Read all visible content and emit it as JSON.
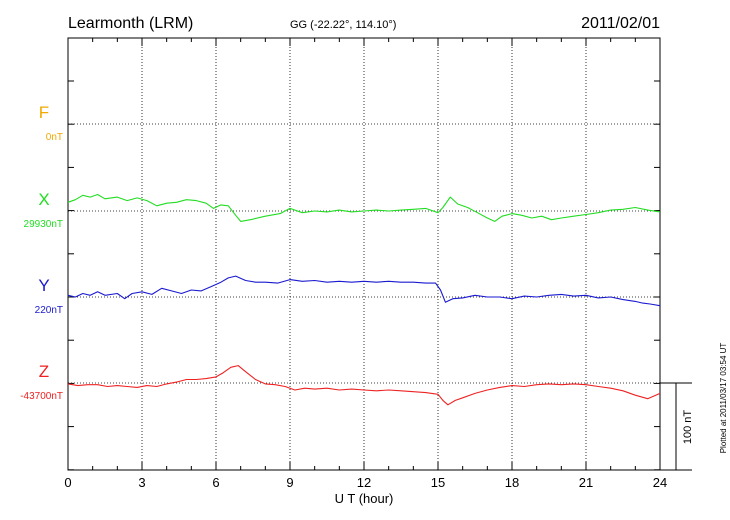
{
  "header": {
    "station": "Learmonth (LRM)",
    "coords": "GG (-22.22°, 114.10°)",
    "date": "2011/02/01"
  },
  "side_note": "Plotted at 2011/03/17 03:54 UT",
  "scale_label": "100 nT",
  "chart_data": {
    "type": "line",
    "xlabel": "U T (hour)",
    "xlim": [
      0,
      24
    ],
    "xticks": [
      "0",
      "3",
      "6",
      "9",
      "12",
      "15",
      "18",
      "21",
      "24"
    ],
    "grid": true,
    "series": [
      {
        "name": "F",
        "baseline": "0nT",
        "color": "#f2a900",
        "x": [],
        "values": []
      },
      {
        "name": "X",
        "baseline": "29930nT",
        "color": "#22dd22",
        "x": [
          0,
          0.3,
          0.6,
          0.9,
          1.2,
          1.5,
          2.0,
          2.4,
          2.8,
          3.2,
          3.6,
          4.0,
          4.4,
          4.8,
          5.2,
          5.6,
          5.9,
          6.2,
          6.5,
          6.8,
          7.0,
          7.4,
          8.0,
          8.6,
          9.0,
          9.5,
          10,
          10.5,
          11,
          11.5,
          12,
          12.5,
          13,
          13.5,
          14,
          14.5,
          15,
          15.2,
          15.5,
          15.8,
          16.2,
          16.6,
          17.0,
          17.3,
          17.6,
          18.0,
          18.4,
          18.8,
          19.2,
          19.6,
          20,
          20.5,
          21,
          21.5,
          22,
          22.5,
          23,
          23.5,
          24
        ],
        "values": [
          10,
          13,
          18,
          16,
          19,
          14,
          16,
          12,
          15,
          12,
          6,
          9,
          10,
          13,
          12,
          9,
          3,
          7,
          6,
          -5,
          -12,
          -10,
          -6,
          -3,
          3,
          -2,
          0,
          -1,
          1,
          -1,
          0,
          1,
          0,
          1,
          2,
          3,
          -2,
          4,
          16,
          8,
          4,
          -2,
          -8,
          -12,
          -6,
          -3,
          -5,
          -8,
          -6,
          -10,
          -8,
          -6,
          -4,
          -2,
          1,
          2,
          4,
          1,
          -1
        ]
      },
      {
        "name": "Y",
        "baseline": "220nT",
        "color": "#1a1ad0",
        "x": [
          0,
          0.3,
          0.6,
          0.9,
          1.2,
          1.5,
          2.0,
          2.3,
          2.6,
          3.0,
          3.4,
          3.8,
          4.2,
          4.6,
          5.0,
          5.4,
          5.8,
          6.2,
          6.5,
          6.8,
          7.2,
          7.6,
          8.0,
          8.5,
          9.0,
          9.5,
          10,
          10.5,
          11,
          11.5,
          12,
          12.5,
          13,
          13.5,
          14,
          14.5,
          14.9,
          15.1,
          15.3,
          15.6,
          16,
          16.5,
          17,
          17.5,
          18,
          18.5,
          19,
          19.5,
          20,
          20.5,
          21,
          21.5,
          22,
          22.5,
          23,
          23.3,
          23.6,
          24
        ],
        "values": [
          2,
          0,
          4,
          2,
          6,
          2,
          4,
          -2,
          4,
          6,
          3,
          10,
          7,
          4,
          8,
          7,
          12,
          17,
          22,
          24,
          19,
          17,
          17,
          16,
          20,
          18,
          19,
          17,
          18,
          17,
          18,
          17,
          18,
          17,
          17,
          16,
          16,
          8,
          -6,
          -2,
          -1,
          2,
          0,
          0,
          -2,
          1,
          0,
          2,
          3,
          1,
          2,
          -1,
          0,
          -3,
          -5,
          -7,
          -8,
          -10
        ]
      },
      {
        "name": "Z",
        "baseline": "-43700nT",
        "color": "#ee2222",
        "x": [
          0,
          0.4,
          0.8,
          1.2,
          1.6,
          2.0,
          2.4,
          2.8,
          3.2,
          3.6,
          4.0,
          4.4,
          4.8,
          5.2,
          5.6,
          6.0,
          6.3,
          6.6,
          6.9,
          7.2,
          7.6,
          8.0,
          8.4,
          8.8,
          9.2,
          9.6,
          10,
          10.5,
          11,
          11.5,
          12,
          12.5,
          13,
          13.5,
          14,
          14.5,
          15,
          15.2,
          15.4,
          15.7,
          16,
          16.5,
          17,
          17.5,
          18,
          18.5,
          19,
          19.5,
          20,
          20.5,
          21,
          21.5,
          22,
          22.5,
          23,
          23.5,
          24
        ],
        "values": [
          -1,
          -3,
          -2,
          -2,
          -4,
          -3,
          -4,
          -5,
          -3,
          -4,
          -1,
          1,
          4,
          4,
          5,
          7,
          12,
          18,
          20,
          13,
          4,
          -1,
          -2,
          -4,
          -8,
          -6,
          -7,
          -6,
          -8,
          -7,
          -8,
          -9,
          -8,
          -9,
          -10,
          -11,
          -13,
          -20,
          -25,
          -20,
          -17,
          -12,
          -8,
          -5,
          -3,
          -4,
          -2,
          -1,
          -2,
          -1,
          -2,
          -4,
          -6,
          -9,
          -14,
          -18,
          -12
        ]
      }
    ]
  }
}
